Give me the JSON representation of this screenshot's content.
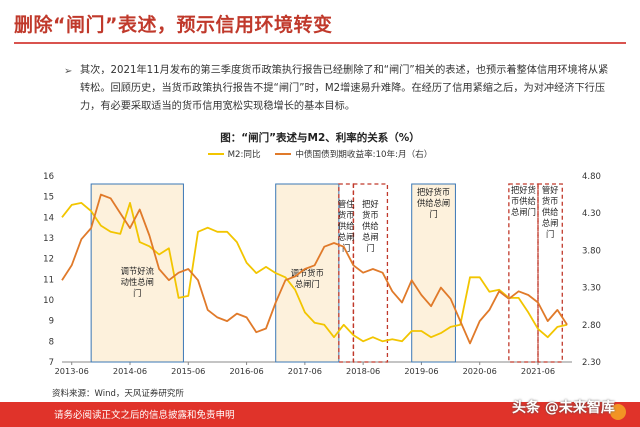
{
  "title": "删除“闸门”表述，预示信用环境转变",
  "bullet": "➢",
  "paragraph": "其次，2021年11月发布的第三季度货币政策执行报告已经删除了和“闸门”相关的表述，也预示着整体信用环境将从紧转松。回顾历史，当货币政策执行报告不提“闸门”时，M2增速易升难降。在经历了信用紧缩之后，为对冲经济下行压力，有必要采取适当的货币信用宽松实现稳增长的基本目标。",
  "source": "资料来源：Wind，天风证券研究所",
  "footer": "请务必阅读正文之后的信息披露和免责申明",
  "watermark": "头条 @未来智库",
  "chart_data": {
    "type": "line",
    "title": "图：“闸门”表述与M2、利率的关系（%）",
    "x_ticks": [
      "2013-06",
      "2014-06",
      "2015-06",
      "2016-06",
      "2017-06",
      "2018-06",
      "2019-06",
      "2020-06",
      "2021-06"
    ],
    "x_range": [
      "2013-04",
      "2022-01"
    ],
    "y_left": {
      "ticks": [
        7,
        8,
        9,
        10,
        11,
        12,
        13,
        14,
        15,
        16
      ],
      "range": [
        7,
        16
      ]
    },
    "y_right": {
      "ticks": [
        "2.30",
        "2.80",
        "3.30",
        "3.80",
        "4.30",
        "4.80"
      ],
      "range": [
        2.3,
        4.8
      ]
    },
    "series": [
      {
        "name": "M2:同比",
        "color": "#f2c500",
        "axis": "left",
        "points": [
          [
            "2013-04",
            14.0
          ],
          [
            "2013-06",
            14.6
          ],
          [
            "2013-08",
            14.7
          ],
          [
            "2013-10",
            14.3
          ],
          [
            "2013-12",
            13.6
          ],
          [
            "2014-02",
            13.3
          ],
          [
            "2014-04",
            13.2
          ],
          [
            "2014-06",
            14.7
          ],
          [
            "2014-08",
            12.8
          ],
          [
            "2014-10",
            12.6
          ],
          [
            "2014-12",
            12.2
          ],
          [
            "2015-02",
            12.5
          ],
          [
            "2015-04",
            10.1
          ],
          [
            "2015-06",
            10.2
          ],
          [
            "2015-08",
            13.3
          ],
          [
            "2015-10",
            13.5
          ],
          [
            "2015-12",
            13.3
          ],
          [
            "2016-02",
            13.3
          ],
          [
            "2016-04",
            12.8
          ],
          [
            "2016-06",
            11.8
          ],
          [
            "2016-08",
            11.3
          ],
          [
            "2016-10",
            11.6
          ],
          [
            "2016-12",
            11.3
          ],
          [
            "2017-02",
            11.1
          ],
          [
            "2017-04",
            10.5
          ],
          [
            "2017-06",
            9.4
          ],
          [
            "2017-08",
            8.9
          ],
          [
            "2017-10",
            8.8
          ],
          [
            "2017-12",
            8.2
          ],
          [
            "2018-02",
            8.8
          ],
          [
            "2018-04",
            8.3
          ],
          [
            "2018-06",
            8.0
          ],
          [
            "2018-08",
            8.2
          ],
          [
            "2018-10",
            8.0
          ],
          [
            "2018-12",
            8.1
          ],
          [
            "2019-02",
            8.0
          ],
          [
            "2019-04",
            8.5
          ],
          [
            "2019-06",
            8.5
          ],
          [
            "2019-08",
            8.2
          ],
          [
            "2019-10",
            8.4
          ],
          [
            "2019-12",
            8.7
          ],
          [
            "2020-02",
            8.8
          ],
          [
            "2020-04",
            11.1
          ],
          [
            "2020-06",
            11.1
          ],
          [
            "2020-08",
            10.4
          ],
          [
            "2020-10",
            10.5
          ],
          [
            "2020-12",
            10.1
          ],
          [
            "2021-02",
            10.1
          ],
          [
            "2021-04",
            9.4
          ],
          [
            "2021-06",
            8.6
          ],
          [
            "2021-08",
            8.2
          ],
          [
            "2021-10",
            8.7
          ],
          [
            "2021-12",
            8.8
          ]
        ]
      },
      {
        "name": "中债国债到期收益率:10年:月（右）",
        "color": "#e07a2a",
        "axis": "right",
        "points": [
          [
            "2013-04",
            3.4
          ],
          [
            "2013-06",
            3.6
          ],
          [
            "2013-08",
            3.95
          ],
          [
            "2013-10",
            4.1
          ],
          [
            "2013-12",
            4.55
          ],
          [
            "2014-02",
            4.5
          ],
          [
            "2014-04",
            4.3
          ],
          [
            "2014-06",
            4.1
          ],
          [
            "2014-08",
            4.35
          ],
          [
            "2014-10",
            4.0
          ],
          [
            "2014-12",
            3.55
          ],
          [
            "2015-02",
            3.4
          ],
          [
            "2015-04",
            3.5
          ],
          [
            "2015-06",
            3.55
          ],
          [
            "2015-08",
            3.4
          ],
          [
            "2015-10",
            3.0
          ],
          [
            "2015-12",
            2.9
          ],
          [
            "2016-02",
            2.85
          ],
          [
            "2016-04",
            2.95
          ],
          [
            "2016-06",
            2.9
          ],
          [
            "2016-08",
            2.7
          ],
          [
            "2016-10",
            2.75
          ],
          [
            "2016-12",
            3.1
          ],
          [
            "2017-02",
            3.4
          ],
          [
            "2017-04",
            3.45
          ],
          [
            "2017-06",
            3.55
          ],
          [
            "2017-08",
            3.6
          ],
          [
            "2017-10",
            3.85
          ],
          [
            "2017-12",
            3.9
          ],
          [
            "2018-02",
            3.85
          ],
          [
            "2018-04",
            3.6
          ],
          [
            "2018-06",
            3.5
          ],
          [
            "2018-08",
            3.55
          ],
          [
            "2018-10",
            3.5
          ],
          [
            "2018-12",
            3.25
          ],
          [
            "2019-02",
            3.1
          ],
          [
            "2019-04",
            3.4
          ],
          [
            "2019-06",
            3.2
          ],
          [
            "2019-08",
            3.05
          ],
          [
            "2019-10",
            3.3
          ],
          [
            "2019-12",
            3.15
          ],
          [
            "2020-02",
            2.85
          ],
          [
            "2020-04",
            2.55
          ],
          [
            "2020-06",
            2.85
          ],
          [
            "2020-08",
            3.0
          ],
          [
            "2020-10",
            3.25
          ],
          [
            "2020-12",
            3.15
          ],
          [
            "2021-02",
            3.25
          ],
          [
            "2021-04",
            3.2
          ],
          [
            "2021-06",
            3.1
          ],
          [
            "2021-08",
            2.85
          ],
          [
            "2021-10",
            3.0
          ],
          [
            "2021-12",
            2.8
          ]
        ]
      }
    ],
    "periods": [
      {
        "start": "2013-10",
        "end": "2015-05",
        "style": "blue",
        "label": "调节好流动性总闸门"
      },
      {
        "start": "2016-12",
        "end": "2018-01",
        "style": "blue",
        "label": "调节货币总闸门"
      },
      {
        "start": "2018-01",
        "end": "2018-04",
        "style": "red",
        "label": "管住货币供给总闸门"
      },
      {
        "start": "2018-04",
        "end": "2018-11",
        "style": "red",
        "label": "把好货币供给总闸门"
      },
      {
        "start": "2019-04",
        "end": "2020-01",
        "style": "blue",
        "label": "把好货币供给总闸门"
      },
      {
        "start": "2020-12",
        "end": "2021-06",
        "style": "red",
        "label": "把好货币供给总闸门"
      },
      {
        "start": "2021-06",
        "end": "2021-11",
        "style": "red",
        "label": "管好货币供给总闸门"
      }
    ]
  }
}
